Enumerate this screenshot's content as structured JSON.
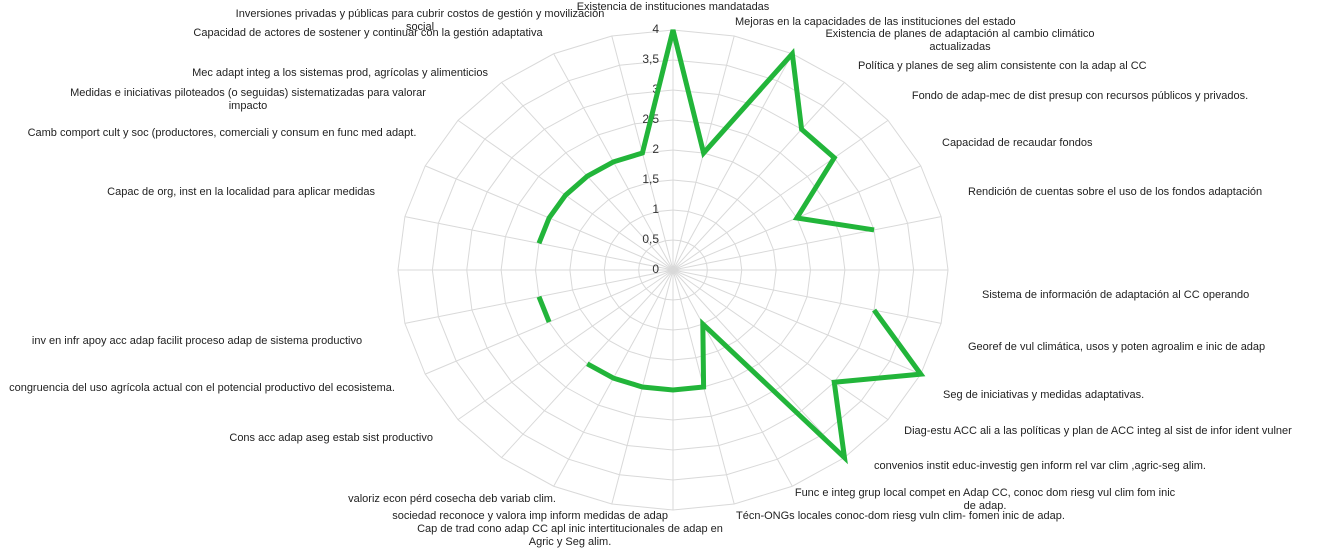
{
  "chart_data": {
    "type": "radar",
    "categories": [
      "Existencia de instituciones mandatadas",
      "Mejoras en la capacidades de las instituciones  del estado",
      "Existencia de  planes de adaptación al cambio climático actualizadas",
      "Política  y  planes de seg alim consistente con la adap al CC",
      "Fondo de adap-mec de dist presup con recursos públicos y privados.",
      "Capacidad  de recaudar fondos",
      "Rendición de cuentas sobre el uso de los fondos adaptación",
      null,
      "Sistema de información de adaptación al CC operando",
      "Georef de vul climática, usos  y poten agroalim  e inic de adap",
      "Seg  de  iniciativas y medidas adaptativas.",
      "Diag-estu ACC ali a las políticas y plan de ACC integ al sist de infor ident vulner",
      "convenios instit educ-investig gen inform rel var clim ,agric-seg alim.",
      "Func e integ grup local compet en Adap CC, conoc dom riesg vul clim fom inic de adap.",
      "Técn-ONGs locales conoc-dom riesg vuln clim- fomen inic de adap.",
      "Cap de trad cono adap CC apl inic intertitucionales  de adap en Agric y Seg alim.",
      "sociedad reconoce y valora imp inform medidas de adap",
      "valoriz econ pérd cosecha deb variab clim.",
      "Cons acc adap aseg estab sist productivo",
      "congruencia del uso agrícola actual con el potencial productivo del ecosistema.",
      "inv en infr apoy  acc adap  facilit proceso adap de sistema productivo",
      null,
      "Capac de org, inst en la localidad   para aplicar medidas",
      "Camb comport cult y soc (productores,  comerciali  y consum en func med adapt.",
      "Medidas e iniciativas piloteados (o seguidas) sistematizadas para valorar impacto",
      "Mec adapt integ  a los sistemas prod, agrícolas y alimenticios",
      "Capacidad de actores de  sostener y continuar con la gestión adaptativa",
      "Inversiones privadas  y públicas para cubrir costos  de gestión y movilización social"
    ],
    "values": [
      4,
      2,
      4,
      3,
      3,
      2,
      3,
      null,
      3,
      4,
      3,
      4,
      1,
      2,
      2,
      2,
      2,
      2,
      null,
      2,
      2,
      null,
      2,
      2,
      2,
      2,
      2,
      2
    ],
    "color": "#22b53a",
    "ylim": [
      0,
      4
    ],
    "yticks": [
      0,
      {
        "value": 0.5,
        "label": "0,5"
      },
      1,
      {
        "value": 1.5,
        "label": "1,5"
      },
      2,
      {
        "value": 2.5,
        "label": "2,5"
      },
      3,
      {
        "value": 3.5,
        "label": "3,5"
      },
      4
    ],
    "grid": true
  }
}
